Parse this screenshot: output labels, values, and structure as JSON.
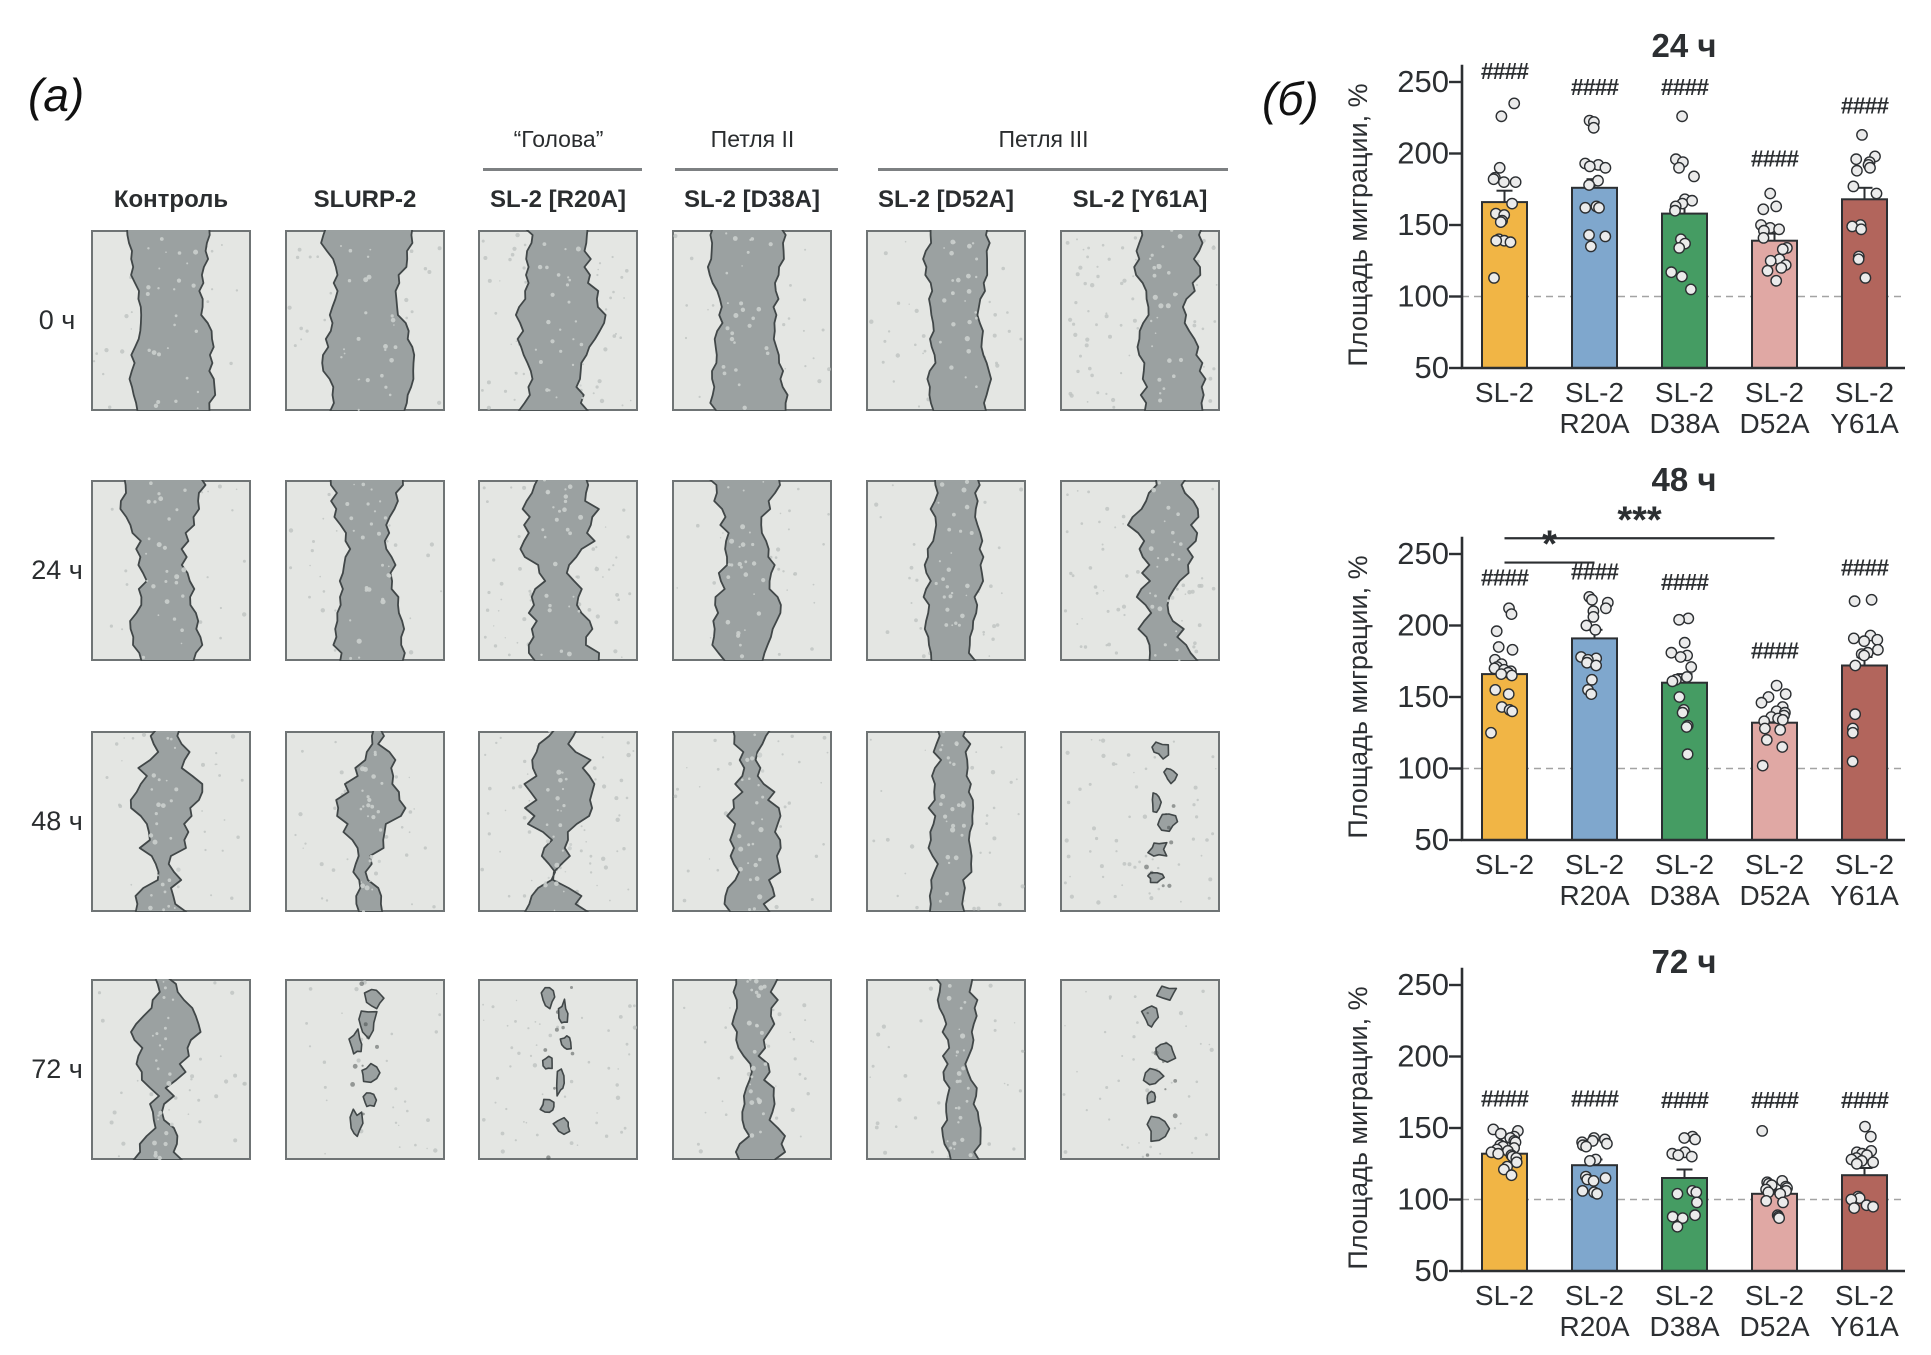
{
  "figure": {
    "panel_a_label": "(а)",
    "panel_b_label": "(б)"
  },
  "panel_a": {
    "row_labels": [
      "0 ч",
      "24 ч",
      "48 ч",
      "72 ч"
    ],
    "col_labels": [
      "Контроль",
      "SLURP-2",
      "SL-2 [R20A]",
      "SL-2 [D38A]",
      "SL-2 [D52A]",
      "SL-2 [Y61A]"
    ],
    "group_headers": [
      {
        "label": "“Голова”",
        "start_col": 2,
        "end_col": 2
      },
      {
        "label": "Петля II",
        "start_col": 3,
        "end_col": 3
      },
      {
        "label": "Петля III",
        "start_col": 4,
        "end_col": 5
      }
    ],
    "tiles": [
      [
        {
          "c": 0.5,
          "w": 0.46,
          "jag": 0.3,
          "frag": 0,
          "noise": 0.12
        },
        {
          "c": 0.52,
          "w": 0.48,
          "jag": 0.45,
          "frag": 0,
          "noise": 0.1
        },
        {
          "c": 0.5,
          "w": 0.42,
          "jag": 0.6,
          "frag": 0,
          "noise": 0.45
        },
        {
          "c": 0.47,
          "w": 0.4,
          "jag": 0.35,
          "frag": 0,
          "noise": 0.1
        },
        {
          "c": 0.57,
          "w": 0.33,
          "jag": 0.3,
          "frag": 0,
          "noise": 0.15
        },
        {
          "c": 0.68,
          "w": 0.33,
          "jag": 0.5,
          "frag": 0,
          "noise": 0.55
        }
      ],
      [
        {
          "c": 0.46,
          "w": 0.36,
          "jag": 0.6,
          "frag": 0,
          "noise": 0.12
        },
        {
          "c": 0.52,
          "w": 0.36,
          "jag": 0.55,
          "frag": 0,
          "noise": 0.1
        },
        {
          "c": 0.52,
          "w": 0.33,
          "jag": 0.85,
          "frag": 0,
          "noise": 0.4
        },
        {
          "c": 0.46,
          "w": 0.32,
          "jag": 0.6,
          "frag": 0,
          "noise": 0.12
        },
        {
          "c": 0.55,
          "w": 0.3,
          "jag": 0.35,
          "frag": 0,
          "noise": 0.1
        },
        {
          "c": 0.66,
          "w": 0.26,
          "jag": 0.85,
          "frag": 0,
          "noise": 0.35
        }
      ],
      [
        {
          "c": 0.46,
          "w": 0.24,
          "jag": 0.95,
          "frag": 0,
          "noise": 0.12
        },
        {
          "c": 0.53,
          "w": 0.21,
          "jag": 0.95,
          "frag": 1,
          "noise": 0.1
        },
        {
          "c": 0.5,
          "w": 0.22,
          "jag": 1.0,
          "frag": 1,
          "noise": 0.4
        },
        {
          "c": 0.5,
          "w": 0.23,
          "jag": 0.7,
          "frag": 0,
          "noise": 0.12
        },
        {
          "c": 0.54,
          "w": 0.21,
          "jag": 0.5,
          "frag": 0,
          "noise": 0.1
        },
        {
          "c": 0.62,
          "w": 0.15,
          "jag": 1.0,
          "frag": 2,
          "noise": 0.3
        }
      ],
      [
        {
          "c": 0.45,
          "w": 0.18,
          "jag": 0.95,
          "frag": 1,
          "noise": 0.1
        },
        {
          "c": 0.5,
          "w": 0.1,
          "jag": 1.0,
          "frag": 2,
          "noise": 0.08
        },
        {
          "c": 0.5,
          "w": 0.1,
          "jag": 1.0,
          "frag": 2,
          "noise": 0.25
        },
        {
          "c": 0.53,
          "w": 0.19,
          "jag": 0.7,
          "frag": 0,
          "noise": 0.1
        },
        {
          "c": 0.58,
          "w": 0.2,
          "jag": 0.5,
          "frag": 0,
          "noise": 0.08
        },
        {
          "c": 0.63,
          "w": 0.15,
          "jag": 0.95,
          "frag": 2,
          "noise": 0.2
        }
      ]
    ]
  },
  "chart_data": [
    {
      "type": "bar",
      "title": "24 ч",
      "ylabel": "Площадь миграции, %",
      "categories": [
        "SL-2",
        "SL-2 R20A",
        "SL-2 D38A",
        "SL-2 D52A",
        "SL-2 Y61A"
      ],
      "x_tick_lines": [
        [
          "SL-2",
          ""
        ],
        [
          "SL-2",
          "R20A"
        ],
        [
          "SL-2",
          "D38A"
        ],
        [
          "SL-2",
          "D52A"
        ],
        [
          "SL-2",
          "Y61A"
        ]
      ],
      "values": [
        166,
        176,
        158,
        139,
        168
      ],
      "errors": [
        8,
        6,
        8,
        5,
        8
      ],
      "bar_colors": [
        "#F1B545",
        "#7FA7CD",
        "#459C63",
        "#E0A8A4",
        "#B2655C"
      ],
      "significance_vs_control": [
        "####",
        "####",
        "####",
        "####",
        "####"
      ],
      "sig_y": [
        252,
        241,
        241,
        191,
        228
      ],
      "brackets": [],
      "baseline_pct": 100,
      "yticks": [
        50,
        100,
        150,
        200,
        250
      ],
      "ylim": [
        50,
        265
      ],
      "points": [
        [
          235,
          226,
          190,
          183,
          182,
          180,
          180,
          165,
          158,
          157,
          153,
          152,
          140,
          139,
          139,
          138,
          113
        ],
        [
          223,
          222,
          218,
          193,
          192,
          191,
          190,
          181,
          178,
          163,
          162,
          162,
          143,
          142,
          135
        ],
        [
          226,
          196,
          194,
          190,
          184,
          168,
          167,
          165,
          163,
          160,
          140,
          137,
          134,
          117,
          114,
          105
        ],
        [
          172,
          163,
          161,
          150,
          148,
          147,
          146,
          141,
          134,
          133,
          126,
          125,
          122,
          120,
          118,
          111
        ],
        [
          213,
          198,
          196,
          194,
          192,
          190,
          188,
          177,
          172,
          150,
          149,
          147,
          128,
          126,
          113
        ]
      ]
    },
    {
      "type": "bar",
      "title": "48 ч",
      "ylabel": "Площадь миграции, %",
      "categories": [
        "SL-2",
        "SL-2 R20A",
        "SL-2 D38A",
        "SL-2 D52A",
        "SL-2 Y61A"
      ],
      "x_tick_lines": [
        [
          "SL-2",
          ""
        ],
        [
          "SL-2",
          "R20A"
        ],
        [
          "SL-2",
          "D38A"
        ],
        [
          "SL-2",
          "D52A"
        ],
        [
          "SL-2",
          "Y61A"
        ]
      ],
      "values": [
        166,
        191,
        160,
        132,
        172
      ],
      "errors": [
        5,
        6,
        6,
        4,
        6
      ],
      "bar_colors": [
        "#F1B545",
        "#7FA7CD",
        "#459C63",
        "#E0A8A4",
        "#B2655C"
      ],
      "significance_vs_control": [
        "####",
        "####",
        "####",
        "####",
        "####"
      ],
      "sig_y": [
        228,
        232,
        225,
        177,
        235
      ],
      "brackets": [
        {
          "from": 0,
          "to": 1,
          "label": "*",
          "y": 244
        },
        {
          "from": 0,
          "to": 3,
          "label": "***",
          "y": 261
        }
      ],
      "baseline_pct": 100,
      "yticks": [
        50,
        100,
        150,
        200,
        250
      ],
      "ylim": [
        50,
        265
      ],
      "points": [
        [
          212,
          208,
          196,
          185,
          183,
          176,
          173,
          171,
          170,
          169,
          168,
          167,
          166,
          165,
          155,
          152,
          143,
          141,
          140,
          125
        ],
        [
          220,
          218,
          216,
          212,
          210,
          206,
          200,
          197,
          178,
          177,
          176,
          174,
          172,
          162,
          155,
          152
        ],
        [
          205,
          204,
          188,
          181,
          179,
          178,
          171,
          164,
          162,
          161,
          150,
          141,
          139,
          130,
          129,
          110
        ],
        [
          158,
          152,
          150,
          146,
          143,
          140,
          139,
          137,
          136,
          135,
          134,
          133,
          128,
          127,
          120,
          115,
          102
        ],
        [
          218,
          217,
          193,
          191,
          190,
          189,
          183,
          181,
          180,
          179,
          172,
          138,
          128,
          125,
          105
        ]
      ]
    },
    {
      "type": "bar",
      "title": "72 ч",
      "ylabel": "Площадь миграции, %",
      "categories": [
        "SL-2",
        "SL-2 R20A",
        "SL-2 D38A",
        "SL-2 D52A",
        "SL-2 Y61A"
      ],
      "x_tick_lines": [
        [
          "SL-2",
          ""
        ],
        [
          "SL-2",
          "R20A"
        ],
        [
          "SL-2",
          "D38A"
        ],
        [
          "SL-2",
          "D52A"
        ],
        [
          "SL-2",
          "Y61A"
        ]
      ],
      "values": [
        132,
        124,
        115,
        104,
        117
      ],
      "errors": [
        3,
        4,
        6,
        3,
        5
      ],
      "bar_colors": [
        "#F1B545",
        "#7FA7CD",
        "#459C63",
        "#E0A8A4",
        "#B2655C"
      ],
      "significance_vs_control": [
        "####",
        "####",
        "####",
        "####",
        "####"
      ],
      "sig_y": [
        165,
        165,
        164,
        164,
        164
      ],
      "brackets": [],
      "baseline_pct": 100,
      "yticks": [
        50,
        100,
        150,
        200,
        250
      ],
      "ylim": [
        50,
        265
      ],
      "points": [
        [
          149,
          148,
          146,
          144,
          143,
          141,
          140,
          138,
          137,
          136,
          135,
          134,
          133,
          132,
          131,
          130,
          129,
          126,
          123,
          121,
          117
        ],
        [
          143,
          142,
          141,
          140,
          139,
          138,
          137,
          128,
          127,
          116,
          115,
          114,
          113,
          106,
          105,
          104
        ],
        [
          144,
          143,
          142,
          133,
          132,
          131,
          130,
          106,
          105,
          104,
          98,
          89,
          88,
          87,
          81
        ],
        [
          148,
          113,
          112,
          111,
          110,
          109,
          108,
          107,
          106,
          105,
          104,
          99,
          98,
          89,
          88,
          87
        ],
        [
          151,
          144,
          134,
          133,
          132,
          131,
          129,
          128,
          127,
          126,
          125,
          102,
          101,
          100,
          96,
          95,
          94
        ]
      ]
    }
  ],
  "colors": {
    "bar_colors": [
      "#F1B545",
      "#7FA7CD",
      "#459C63",
      "#E0A8A4",
      "#B2655C"
    ],
    "tile_bg": "#E4E6E3",
    "tile_border": "#6F7475",
    "band": "#9BA1A1",
    "band_edge": "#414748",
    "bg_speckle": "#BEC3C1",
    "band_speckle": "#CBCFCD",
    "axis_text": "#2C2F32",
    "dashed": "#A3A3A3",
    "point_fill": "#EBEBEB"
  }
}
